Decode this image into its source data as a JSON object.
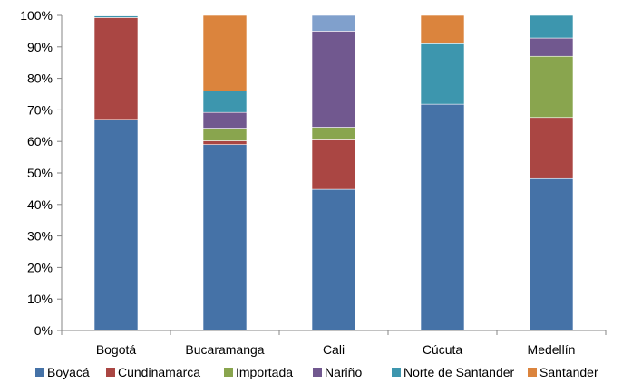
{
  "chart_data": {
    "type": "bar",
    "stacked": true,
    "percent": true,
    "categories": [
      "Bogotá",
      "Bucaramanga",
      "Cali",
      "Cúcuta",
      "Medellín"
    ],
    "series": [
      {
        "name": "Boyacá",
        "color": "#4572A7",
        "values": [
          67.0,
          59.0,
          44.8,
          71.8,
          48.2
        ]
      },
      {
        "name": "Cundinamarca",
        "color": "#AA4643",
        "values": [
          32.3,
          1.2,
          15.7,
          0,
          19.4
        ]
      },
      {
        "name": "Importada",
        "color": "#89A54E",
        "values": [
          0,
          4.0,
          4.0,
          0,
          19.4
        ]
      },
      {
        "name": "Nariño",
        "color": "#71588F",
        "values": [
          0,
          5.0,
          30.5,
          0,
          5.8
        ]
      },
      {
        "name": "Norte de Santander",
        "color": "#3D96AE",
        "values": [
          0.5,
          6.8,
          0,
          19.2,
          7.2
        ]
      },
      {
        "name": "Santander",
        "color": "#DB843D",
        "values": [
          0,
          24.0,
          0,
          9.0,
          0
        ]
      },
      {
        "name": "",
        "color": "#80A0CC",
        "values": [
          0.2,
          0,
          5.0,
          0,
          0
        ]
      }
    ],
    "yticks": [
      "0%",
      "10%",
      "20%",
      "30%",
      "40%",
      "50%",
      "60%",
      "70%",
      "80%",
      "90%",
      "100%"
    ],
    "ylim": [
      0,
      100
    ],
    "legend_position": "bottom",
    "grid": false
  }
}
